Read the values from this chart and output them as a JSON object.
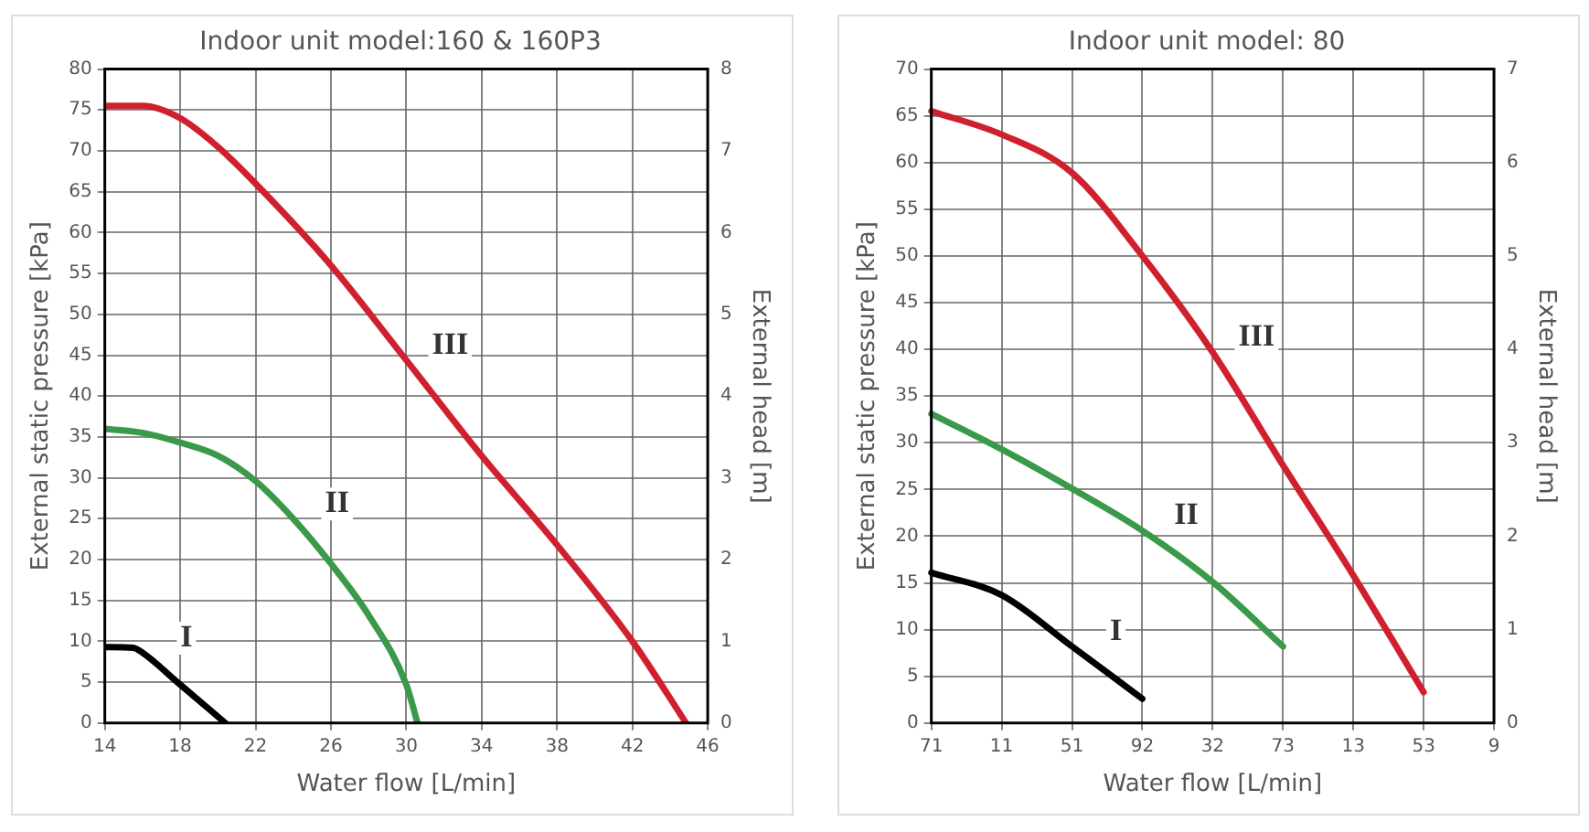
{
  "chart_data": [
    {
      "type": "line",
      "title": "Indoor unit model:160 & 160P3",
      "xlabel": "Water flow [L/min]",
      "ylabel": "External static pressure [kPa]",
      "y2label": "External head [m]",
      "xlim": [
        14,
        46
      ],
      "xticks": [
        14,
        18,
        22,
        26,
        30,
        34,
        38,
        42,
        46
      ],
      "ylim": [
        0,
        80
      ],
      "yticks": [
        0,
        5,
        10,
        15,
        20,
        25,
        30,
        35,
        40,
        45,
        50,
        55,
        60,
        65,
        70,
        75,
        80
      ],
      "y2lim": [
        0,
        8
      ],
      "y2ticks": [
        0,
        1,
        2,
        3,
        4,
        5,
        6,
        7,
        8
      ],
      "grid": true,
      "legend": false,
      "marker": "none",
      "line_style": "solid",
      "series": [
        {
          "name": "III",
          "color": "#d0202e",
          "x": [
            14,
            16,
            18,
            20,
            22,
            26,
            30,
            34,
            38,
            42,
            44.85
          ],
          "values": [
            75.5,
            75.5,
            74,
            70.5,
            66,
            56,
            44.4,
            32.7,
            21.8,
            10,
            0
          ]
        },
        {
          "name": "II",
          "color": "#3a9a4a",
          "x": [
            14,
            16,
            18,
            20,
            22,
            24,
            26,
            28,
            30,
            30.6
          ],
          "values": [
            36,
            35.5,
            34.3,
            32.7,
            29.6,
            25,
            19.5,
            13.2,
            4.7,
            0
          ]
        },
        {
          "name": "I",
          "color": "#000000",
          "x": [
            14,
            15.5,
            16,
            18,
            20.4
          ],
          "values": [
            9.3,
            9.2,
            8.6,
            4.7,
            0
          ]
        }
      ]
    },
    {
      "type": "line",
      "title": "Indoor unit model: 80",
      "xlabel": "Water flow [L/min]",
      "ylabel": "External static pressure [kPa]",
      "y2label": "External head [m]",
      "categories": [
        "71",
        "11",
        "51",
        "92",
        "32",
        "73",
        "13",
        "53",
        "9"
      ],
      "ylim": [
        0,
        70
      ],
      "yticks": [
        0,
        5,
        10,
        15,
        20,
        25,
        30,
        35,
        40,
        45,
        50,
        55,
        60,
        65,
        70
      ],
      "y2lim": [
        0,
        7
      ],
      "y2ticks": [
        0,
        1,
        2,
        3,
        4,
        5,
        6,
        7
      ],
      "grid": true,
      "legend": false,
      "marker": "none",
      "line_style": "solid",
      "series": [
        {
          "name": "III",
          "color": "#d0202e",
          "values": [
            65.5,
            63,
            58.9,
            50,
            39.7,
            27.6,
            15.8,
            3.3,
            null
          ]
        },
        {
          "name": "II",
          "color": "#3a9a4a",
          "values": [
            33.1,
            29.3,
            25.1,
            20.6,
            15.1,
            8.2,
            null,
            null,
            null
          ]
        },
        {
          "name": "I",
          "color": "#000000",
          "values": [
            16.1,
            13.7,
            8.2,
            2.6,
            null,
            null,
            null,
            null,
            null
          ]
        }
      ]
    }
  ]
}
